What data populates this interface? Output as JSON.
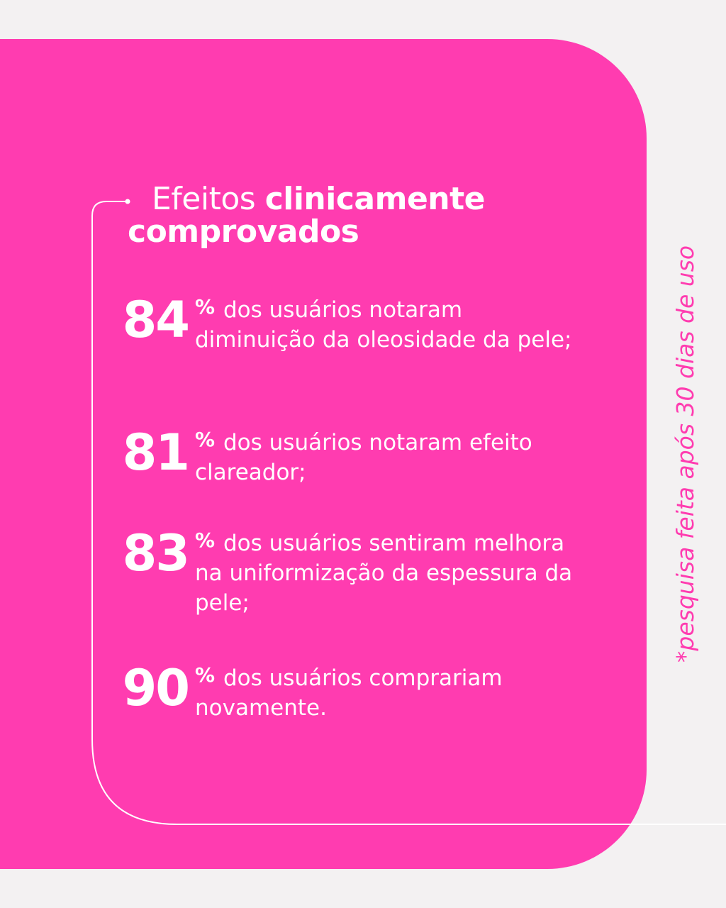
{
  "title": {
    "light": "Efeitos",
    "bold_1": "clinicamente",
    "bold_2": "comprovados"
  },
  "stats": [
    {
      "number": "84",
      "percent_sign": "%",
      "text": "dos usuários notaram diminuição da oleosidade da pele;"
    },
    {
      "number": "81",
      "percent_sign": "%",
      "text": "dos usuários notaram efeito clareador;"
    },
    {
      "number": "83",
      "percent_sign": "%",
      "text": "dos usuários sentiram melhora na uniformização da espessura da pele;"
    },
    {
      "number": "90",
      "percent_sign": "%",
      "text": "dos usuários comprariam novamente."
    }
  ],
  "footnote": "*pesquisa feita após 30 dias de uso",
  "colors": {
    "background": "#f3f1f2",
    "accent_pink": "#ff3cb0",
    "text_white": "#ffffff"
  }
}
